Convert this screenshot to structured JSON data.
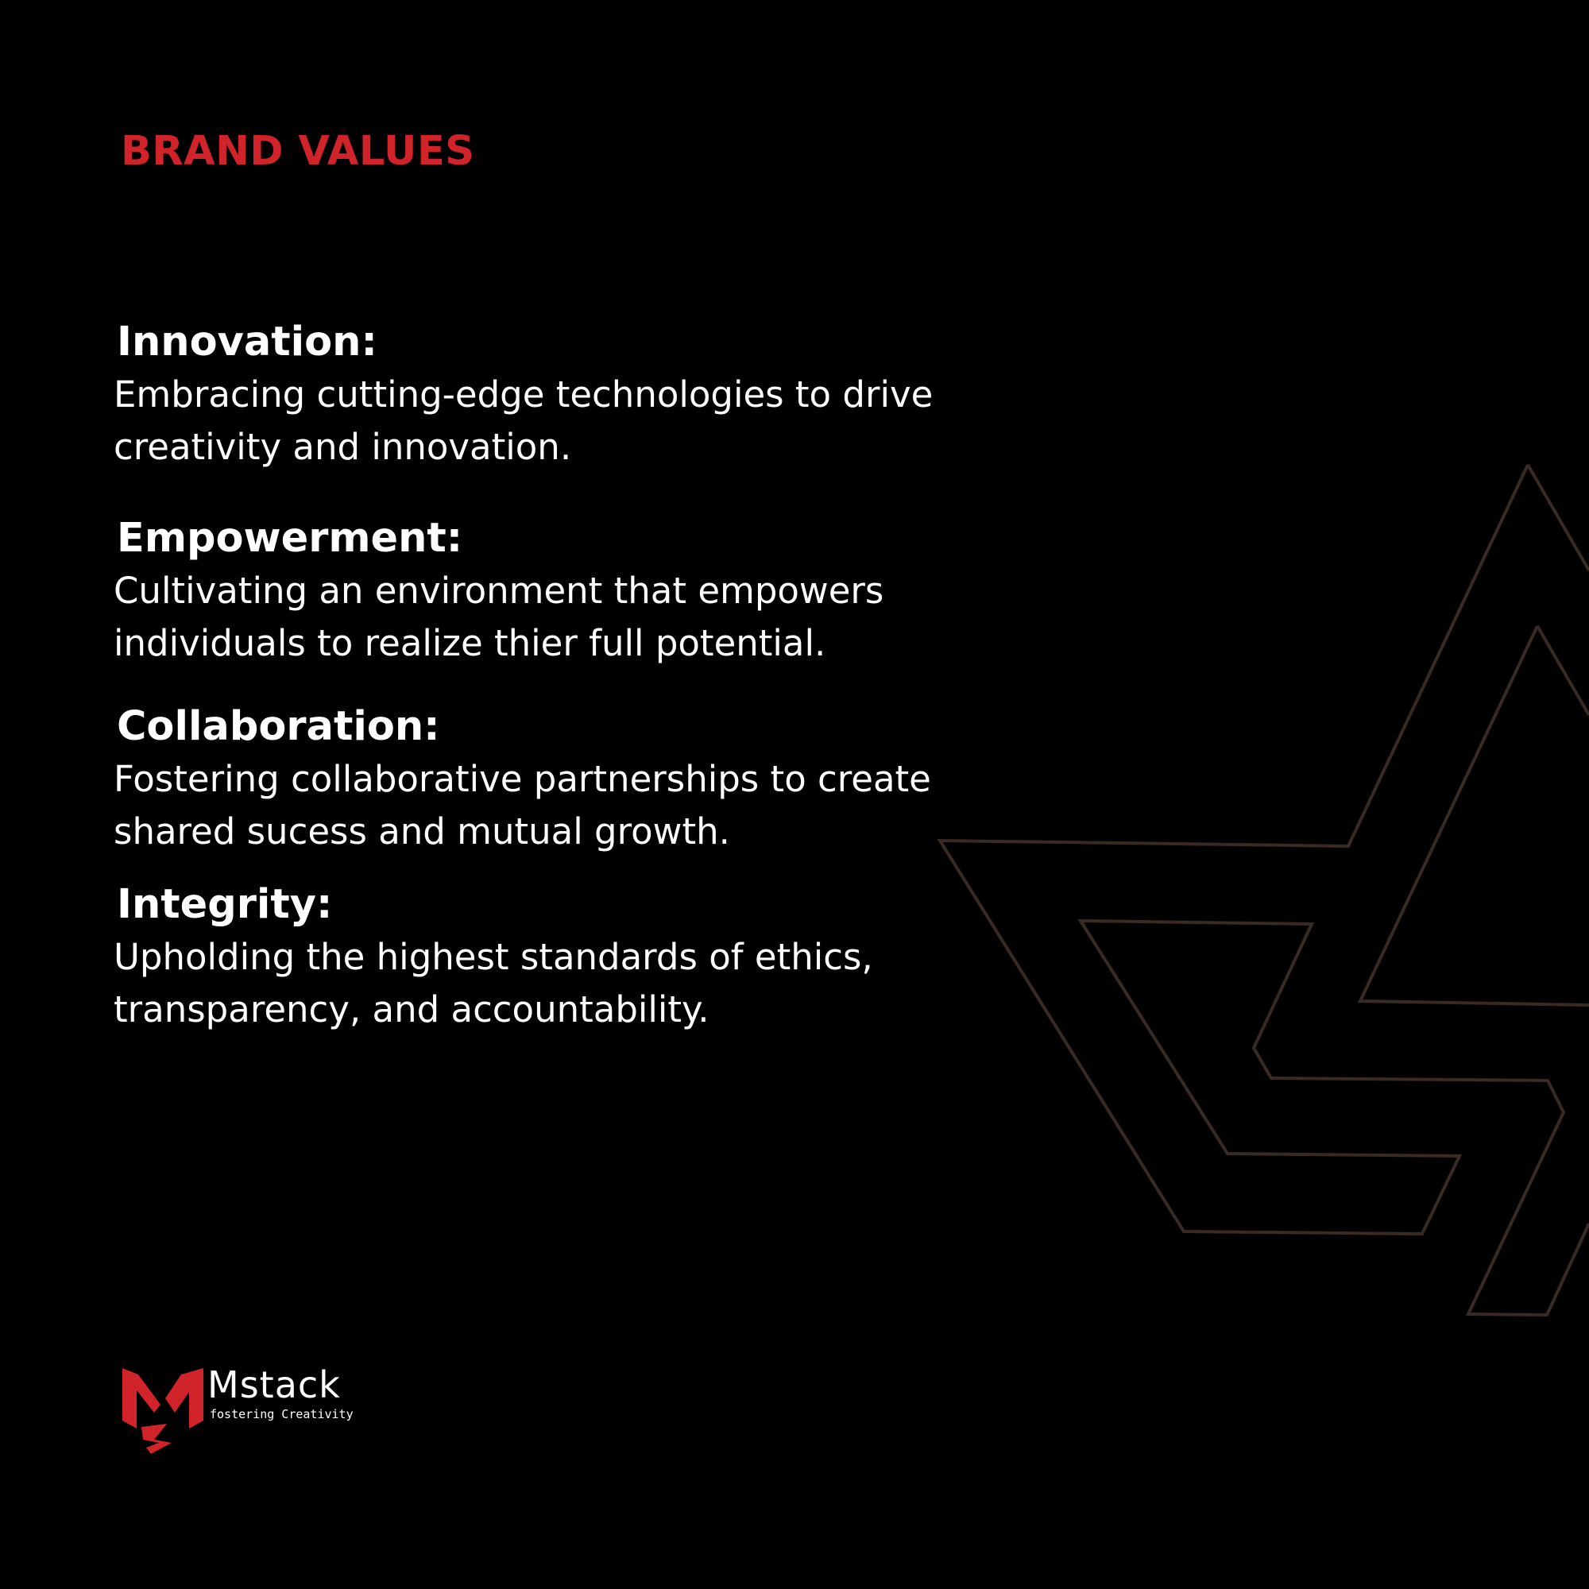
{
  "colors": {
    "background": "#000000",
    "accent": "#d1232a",
    "text": "#ffffff",
    "outline_shape": "#3a2a24"
  },
  "header": {
    "title": "BRAND VALUES"
  },
  "values": [
    {
      "title": "Innovation:",
      "description": "Embracing cutting-edge technologies to drive\ncreativity and innovation."
    },
    {
      "title": "Empowerment:",
      "description": "Cultivating an environment that empowers\nindividuals to realize thier full potential."
    },
    {
      "title": "Collaboration:",
      "description": "Fostering collaborative partnerships to create\nshared sucess and mutual growth."
    },
    {
      "title": "Integrity:",
      "description": "Upholding the highest standards of ethics,\ntransparency, and accountability."
    }
  ],
  "brand": {
    "logo_icon": "mstack-logo-icon",
    "name": "Mstack",
    "tagline": "fostering Creativity"
  },
  "decoration": {
    "icon": "mstack-outline-shape"
  }
}
